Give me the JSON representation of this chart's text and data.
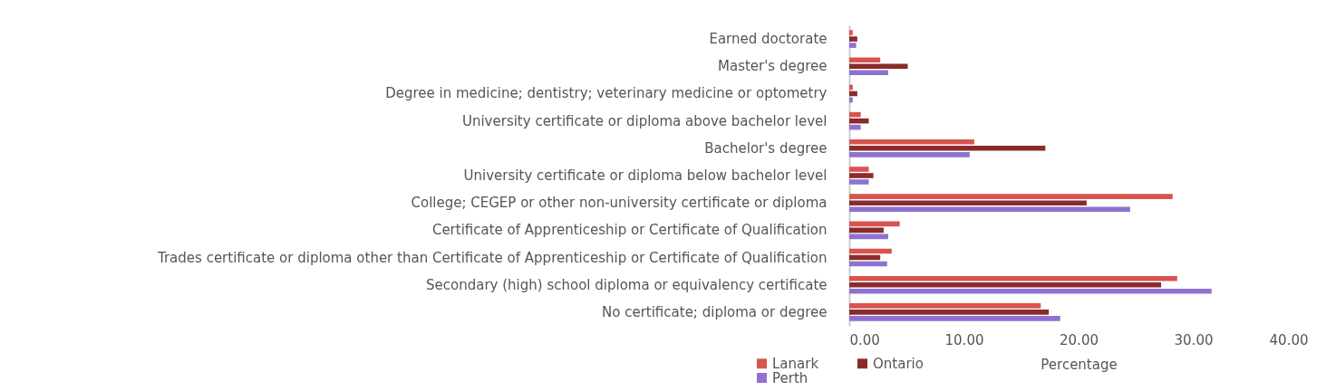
{
  "chart_data": {
    "type": "bar",
    "orientation": "horizontal",
    "categories": [
      "Earned doctorate",
      "Master's degree",
      "Degree in medicine; dentistry; veterinary medicine or optometry",
      "University certificate or diploma above bachelor level",
      "Bachelor's degree",
      "University certificate or diploma below bachelor level",
      "College; CEGEP or other non-university certificate or diploma",
      "Certificate of Apprenticeship or Certificate of Qualification",
      "Trades certificate or diploma other than Certificate of Apprenticeship or Certificate of Qualification",
      "Secondary (high) school diploma or equivalency certificate",
      "No certificate; diploma or degree"
    ],
    "series": [
      {
        "name": "Lanark",
        "color": "#d9534f",
        "values": [
          0.3,
          2.7,
          0.3,
          1.0,
          10.9,
          1.7,
          28.2,
          4.4,
          3.7,
          28.6,
          16.7
        ]
      },
      {
        "name": "Ontario",
        "color": "#8b2b2b",
        "values": [
          0.7,
          5.1,
          0.7,
          1.7,
          17.1,
          2.1,
          20.7,
          3.0,
          2.7,
          27.2,
          17.4
        ]
      },
      {
        "name": "Perth",
        "color": "#8e72d0",
        "values": [
          0.6,
          3.4,
          0.3,
          1.0,
          10.5,
          1.7,
          24.5,
          3.4,
          3.3,
          31.6,
          18.4
        ]
      }
    ],
    "xlabel": "Percentage",
    "xlim": [
      0,
      40
    ],
    "xticks": [
      {
        "value": 0,
        "label": "0.00"
      },
      {
        "value": 10,
        "label": "10.00"
      },
      {
        "value": 20,
        "label": "20.00"
      },
      {
        "value": 30,
        "label": "30.00"
      },
      {
        "value": 40,
        "label": "40.00"
      }
    ],
    "legend": "bottom left",
    "grid": false
  }
}
